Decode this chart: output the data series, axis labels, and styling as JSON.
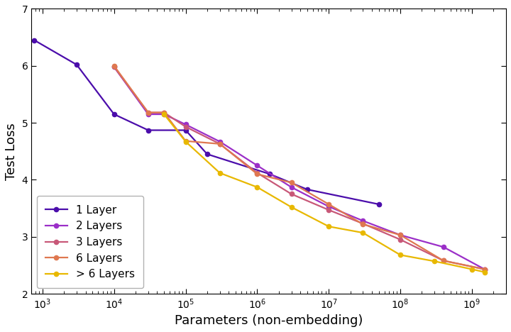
{
  "title": "",
  "xlabel": "Parameters (non-embedding)",
  "ylabel": "Test Loss",
  "xlim": [
    700,
    3000000000
  ],
  "ylim": [
    2.0,
    7.0
  ],
  "yticks": [
    2,
    3,
    4,
    5,
    6,
    7
  ],
  "series": [
    {
      "label": "1 Layer",
      "color": "#4b0dab",
      "x": [
        768,
        3000,
        10000,
        30000,
        100000,
        200000,
        1500000,
        5000000,
        50000000
      ],
      "y": [
        6.45,
        6.02,
        5.15,
        4.87,
        4.87,
        4.45,
        4.1,
        3.83,
        3.57
      ]
    },
    {
      "label": "2 Layers",
      "color": "#9b2fc8",
      "x": [
        10000,
        30000,
        50000,
        100000,
        300000,
        1000000,
        3000000,
        10000000,
        30000000,
        100000000,
        400000000,
        1500000000
      ],
      "y": [
        5.98,
        5.15,
        5.15,
        4.97,
        4.67,
        4.25,
        3.87,
        3.53,
        3.28,
        3.03,
        2.82,
        2.43
      ]
    },
    {
      "label": "3 Layers",
      "color": "#c85878",
      "x": [
        10000,
        30000,
        50000,
        100000,
        300000,
        1000000,
        3000000,
        10000000,
        30000000,
        100000000,
        400000000,
        1500000000
      ],
      "y": [
        5.98,
        5.18,
        5.18,
        4.93,
        4.63,
        4.12,
        3.75,
        3.47,
        3.23,
        2.95,
        2.58,
        2.43
      ]
    },
    {
      "label": "6 Layers",
      "color": "#df7850",
      "x": [
        10000,
        30000,
        50000,
        100000,
        300000,
        1000000,
        3000000,
        10000000,
        30000000,
        100000000,
        400000000,
        1500000000
      ],
      "y": [
        6.0,
        5.18,
        5.18,
        4.68,
        4.63,
        4.1,
        3.95,
        3.57,
        3.22,
        3.03,
        2.58,
        2.43
      ]
    },
    {
      "label": "> 6 Layers",
      "color": "#e8b800",
      "x": [
        50000,
        100000,
        300000,
        1000000,
        3000000,
        10000000,
        30000000,
        100000000,
        300000000,
        1000000000,
        1500000000
      ],
      "y": [
        5.15,
        4.67,
        4.12,
        3.87,
        3.52,
        3.18,
        3.07,
        2.68,
        2.57,
        2.43,
        2.38
      ]
    }
  ],
  "legend_loc": "lower left",
  "marker": "o",
  "markersize": 4.5,
  "linewidth": 1.6
}
